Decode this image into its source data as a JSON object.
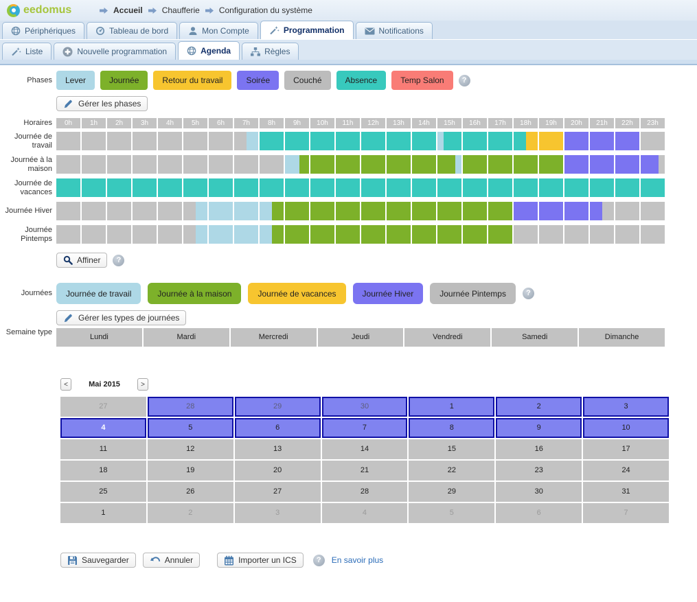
{
  "header": {
    "logo_text": "eedomus",
    "breadcrumb": [
      {
        "label": "Accueil",
        "bold": true
      },
      {
        "label": "Chaufferie",
        "bold": false
      },
      {
        "label": "Configuration du système",
        "bold": false
      }
    ]
  },
  "main_tabs": [
    {
      "label": "Périphériques",
      "icon": "sphere",
      "active": false
    },
    {
      "label": "Tableau de bord",
      "icon": "gauge",
      "active": false
    },
    {
      "label": "Mon Compte",
      "icon": "user",
      "active": false
    },
    {
      "label": "Programmation",
      "icon": "wand",
      "active": true
    },
    {
      "label": "Notifications",
      "icon": "envelope",
      "active": false
    }
  ],
  "sub_tabs": [
    {
      "label": "Liste",
      "icon": "wand",
      "active": false
    },
    {
      "label": "Nouvelle programmation",
      "icon": "plus",
      "active": false
    },
    {
      "label": "Agenda",
      "icon": "sphere",
      "active": true
    },
    {
      "label": "Règles",
      "icon": "hierarchy",
      "active": false
    }
  ],
  "colors": {
    "lever": "#aed8e6",
    "journee": "#7db12a",
    "retour": "#f7c52f",
    "soiree": "#7b74f1",
    "couche": "#bcbcbc",
    "absence": "#38c9bd",
    "tempsalon": "#f97c76",
    "gray": "#c3c3c3"
  },
  "phases": {
    "label": "Phases",
    "items": [
      {
        "label": "Lever",
        "color": "lever"
      },
      {
        "label": "Journée",
        "color": "journee"
      },
      {
        "label": "Retour du travail",
        "color": "retour"
      },
      {
        "label": "Soirée",
        "color": "soiree"
      },
      {
        "label": "Couché",
        "color": "couche"
      },
      {
        "label": "Absence",
        "color": "absence"
      },
      {
        "label": "Temp Salon",
        "color": "tempsalon"
      }
    ],
    "manage_label": "Gérer les phases"
  },
  "horaires": {
    "label": "Horaires",
    "hours": [
      "0h",
      "1h",
      "2h",
      "3h",
      "4h",
      "5h",
      "6h",
      "7h",
      "8h",
      "9h",
      "10h",
      "11h",
      "12h",
      "13h",
      "14h",
      "15h",
      "16h",
      "17h",
      "18h",
      "19h",
      "20h",
      "21h",
      "22h",
      "23h"
    ],
    "rows": [
      {
        "label": "Journée de travail",
        "segments": [
          {
            "start": 0,
            "end": 7.5,
            "color": "gray"
          },
          {
            "start": 7.5,
            "end": 8,
            "color": "lever"
          },
          {
            "start": 8,
            "end": 15,
            "color": "absence"
          },
          {
            "start": 15,
            "end": 15.25,
            "color": "lever"
          },
          {
            "start": 15.25,
            "end": 18.5,
            "color": "absence"
          },
          {
            "start": 18.5,
            "end": 20,
            "color": "retour"
          },
          {
            "start": 20,
            "end": 23,
            "color": "soiree"
          },
          {
            "start": 23,
            "end": 24,
            "color": "gray"
          }
        ]
      },
      {
        "label": "Journée à la maison",
        "segments": [
          {
            "start": 0,
            "end": 9,
            "color": "gray"
          },
          {
            "start": 9,
            "end": 9.6,
            "color": "lever"
          },
          {
            "start": 9.6,
            "end": 15.75,
            "color": "journee"
          },
          {
            "start": 15.75,
            "end": 16,
            "color": "lever"
          },
          {
            "start": 16,
            "end": 20,
            "color": "journee"
          },
          {
            "start": 20,
            "end": 23.75,
            "color": "soiree"
          },
          {
            "start": 23.75,
            "end": 24,
            "color": "gray"
          }
        ]
      },
      {
        "label": "Journée de vacances",
        "segments": [
          {
            "start": 0,
            "end": 24,
            "color": "absence"
          }
        ]
      },
      {
        "label": "Journée Hiver",
        "segments": [
          {
            "start": 0,
            "end": 5.5,
            "color": "gray"
          },
          {
            "start": 5.5,
            "end": 8.5,
            "color": "lever"
          },
          {
            "start": 8.5,
            "end": 18,
            "color": "journee"
          },
          {
            "start": 18,
            "end": 21.5,
            "color": "soiree"
          },
          {
            "start": 21.5,
            "end": 24,
            "color": "gray"
          }
        ]
      },
      {
        "label": "Journée Pintemps",
        "segments": [
          {
            "start": 0,
            "end": 5.5,
            "color": "gray"
          },
          {
            "start": 5.5,
            "end": 8.5,
            "color": "lever"
          },
          {
            "start": 8.5,
            "end": 18,
            "color": "journee"
          },
          {
            "start": 18,
            "end": 24,
            "color": "gray"
          }
        ]
      }
    ],
    "affiner_label": "Affiner"
  },
  "journees": {
    "label": "Journées",
    "items": [
      {
        "label": "Journée de travail",
        "color": "lever"
      },
      {
        "label": "Journée à la maison",
        "color": "journee"
      },
      {
        "label": "Journée de vacances",
        "color": "retour"
      },
      {
        "label": "Journée Hiver",
        "color": "soiree"
      },
      {
        "label": "Journée Pintemps",
        "color": "couche"
      }
    ],
    "manage_label": "Gérer les types de journées"
  },
  "semaine_type": {
    "label": "Semaine type",
    "days": [
      "Lundi",
      "Mardi",
      "Mercredi",
      "Jeudi",
      "Vendredi",
      "Samedi",
      "Dimanche"
    ]
  },
  "calendar": {
    "prev": "<",
    "next": ">",
    "month_label": "Mai 2015",
    "weeks": [
      [
        {
          "d": "27",
          "s": "gray-out"
        },
        {
          "d": "28",
          "s": "purple-out"
        },
        {
          "d": "29",
          "s": "purple-out"
        },
        {
          "d": "30",
          "s": "purple-out"
        },
        {
          "d": "1",
          "s": "purple"
        },
        {
          "d": "2",
          "s": "purple"
        },
        {
          "d": "3",
          "s": "purple"
        }
      ],
      [
        {
          "d": "4",
          "s": "purple-today"
        },
        {
          "d": "5",
          "s": "purple"
        },
        {
          "d": "6",
          "s": "purple"
        },
        {
          "d": "7",
          "s": "purple"
        },
        {
          "d": "8",
          "s": "purple"
        },
        {
          "d": "9",
          "s": "purple"
        },
        {
          "d": "10",
          "s": "purple"
        }
      ],
      [
        {
          "d": "11",
          "s": "gray"
        },
        {
          "d": "12",
          "s": "gray"
        },
        {
          "d": "13",
          "s": "gray"
        },
        {
          "d": "14",
          "s": "gray"
        },
        {
          "d": "15",
          "s": "gray"
        },
        {
          "d": "16",
          "s": "gray"
        },
        {
          "d": "17",
          "s": "gray"
        }
      ],
      [
        {
          "d": "18",
          "s": "gray"
        },
        {
          "d": "19",
          "s": "gray"
        },
        {
          "d": "20",
          "s": "gray"
        },
        {
          "d": "21",
          "s": "gray"
        },
        {
          "d": "22",
          "s": "gray"
        },
        {
          "d": "23",
          "s": "gray"
        },
        {
          "d": "24",
          "s": "gray"
        }
      ],
      [
        {
          "d": "25",
          "s": "gray"
        },
        {
          "d": "26",
          "s": "gray"
        },
        {
          "d": "27",
          "s": "gray"
        },
        {
          "d": "28",
          "s": "gray"
        },
        {
          "d": "29",
          "s": "gray"
        },
        {
          "d": "30",
          "s": "gray"
        },
        {
          "d": "31",
          "s": "gray"
        }
      ],
      [
        {
          "d": "1",
          "s": "gray"
        },
        {
          "d": "2",
          "s": "gray-out"
        },
        {
          "d": "3",
          "s": "gray-out"
        },
        {
          "d": "4",
          "s": "gray-out"
        },
        {
          "d": "5",
          "s": "gray-out"
        },
        {
          "d": "6",
          "s": "gray-out"
        },
        {
          "d": "7",
          "s": "gray-out"
        }
      ]
    ]
  },
  "footer": {
    "save_label": "Sauvegarder",
    "cancel_label": "Annuler",
    "import_label": "Importer un ICS",
    "learn_more_label": "En savoir plus"
  }
}
